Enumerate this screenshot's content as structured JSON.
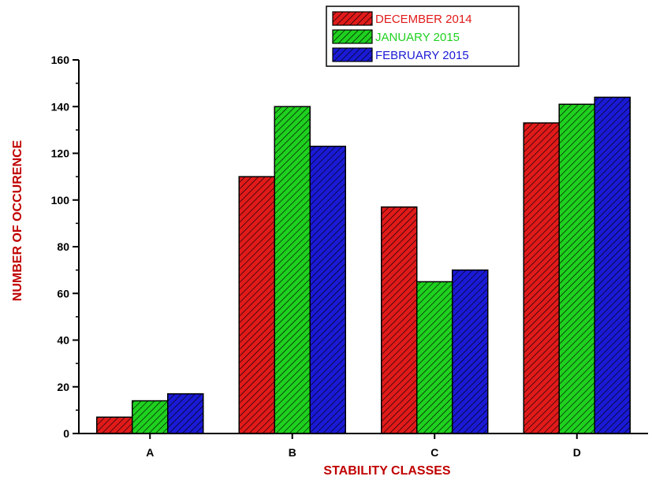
{
  "chart_data": {
    "type": "bar",
    "categories": [
      "A",
      "B",
      "C",
      "D"
    ],
    "series": [
      {
        "name": "DECEMBER 2014",
        "values": [
          7,
          110,
          97,
          133
        ],
        "color": "#e11a1a"
      },
      {
        "name": "JANUARY 2015",
        "values": [
          14,
          140,
          65,
          141
        ],
        "color": "#1fd11f"
      },
      {
        "name": "FEBRUARY 2015",
        "values": [
          17,
          123,
          70,
          144
        ],
        "color": "#1a1ad6"
      }
    ],
    "title": "",
    "xlabel": "STABILITY CLASSES",
    "ylabel": "NUMBER OF OCCURENCE",
    "ylim": [
      0,
      160
    ],
    "yticks": [
      "0",
      "20",
      "40",
      "60",
      "80",
      "100",
      "120",
      "140",
      "160"
    ],
    "legend_placement": "top-center",
    "bar_pattern": "diagonal-hatch",
    "grid": false
  }
}
